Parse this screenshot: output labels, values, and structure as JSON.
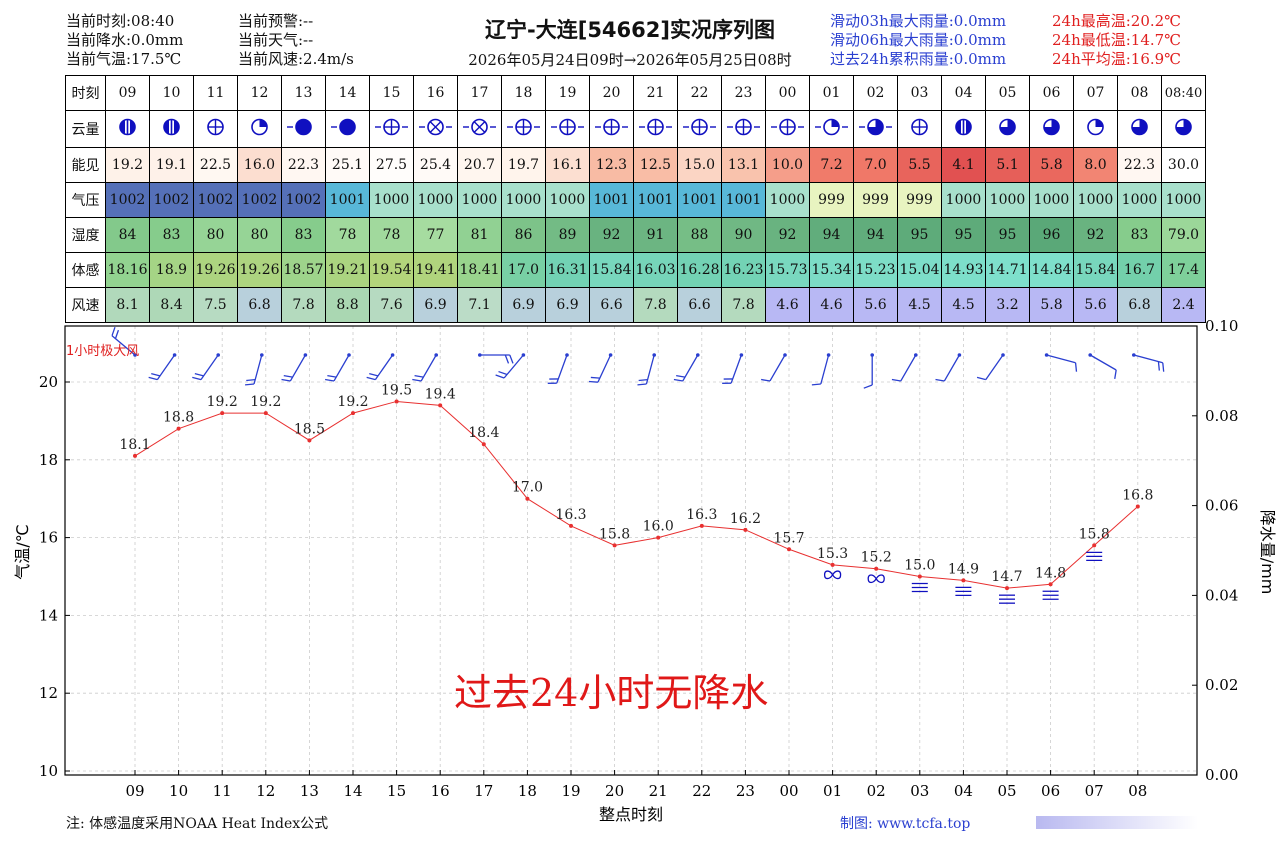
{
  "header": {
    "left": [
      "当前时刻:08:40",
      "当前降水:0.0mm",
      "当前气温:17.5℃"
    ],
    "mid": [
      "当前预警:--",
      "当前天气:--",
      "当前风速:2.4m/s"
    ],
    "title": "辽宁-大连[54662]实况序列图",
    "range": "2026年05月24日09时→2026年05月25日08时",
    "rain": [
      "滑动03h最大雨量:0.0mm",
      "滑动06h最大雨量:0.0mm",
      "过去24h累积雨量:0.0mm"
    ],
    "temp": [
      "24h最高温:20.2℃",
      "24h最低温:14.7℃",
      "24h平均温:16.9℃"
    ]
  },
  "table": {
    "labels": [
      "时刻",
      "云量",
      "能见",
      "气压",
      "湿度",
      "体感",
      "风速"
    ],
    "times": [
      "09",
      "10",
      "11",
      "12",
      "13",
      "14",
      "15",
      "16",
      "17",
      "18",
      "19",
      "20",
      "21",
      "22",
      "23",
      "00",
      "01",
      "02",
      "03",
      "04",
      "05",
      "06",
      "07",
      "08",
      "08:40"
    ],
    "visibility": [
      "19.2",
      "19.1",
      "22.5",
      "16.0",
      "22.3",
      "25.1",
      "27.5",
      "25.4",
      "20.7",
      "19.7",
      "16.1",
      "12.3",
      "12.5",
      "15.0",
      "13.1",
      "10.0",
      "7.2",
      "7.0",
      "5.5",
      "4.1",
      "5.1",
      "5.8",
      "8.0",
      "22.3",
      "30.0"
    ],
    "pressure": [
      "1002",
      "1002",
      "1002",
      "1002",
      "1002",
      "1001",
      "1000",
      "1000",
      "1000",
      "1000",
      "1000",
      "1001",
      "1001",
      "1001",
      "1001",
      "1000",
      "999",
      "999",
      "999",
      "1000",
      "1000",
      "1000",
      "1000",
      "1000",
      "1000"
    ],
    "humidity": [
      "84",
      "83",
      "80",
      "80",
      "83",
      "78",
      "78",
      "77",
      "81",
      "86",
      "89",
      "92",
      "91",
      "88",
      "90",
      "92",
      "94",
      "94",
      "95",
      "95",
      "95",
      "96",
      "92",
      "83",
      "79.0"
    ],
    "feels": [
      "18.16",
      "18.9",
      "19.26",
      "19.26",
      "18.57",
      "19.21",
      "19.54",
      "19.41",
      "18.41",
      "17.0",
      "16.31",
      "15.84",
      "16.03",
      "16.28",
      "16.23",
      "15.73",
      "15.34",
      "15.23",
      "15.04",
      "14.93",
      "14.71",
      "14.84",
      "15.84",
      "16.7",
      "17.4"
    ],
    "wind": [
      "8.1",
      "8.4",
      "7.5",
      "6.8",
      "7.8",
      "8.8",
      "7.6",
      "6.9",
      "7.1",
      "6.9",
      "6.9",
      "6.6",
      "7.8",
      "6.6",
      "7.8",
      "4.6",
      "4.6",
      "5.6",
      "4.5",
      "4.5",
      "3.2",
      "5.8",
      "5.6",
      "6.8",
      "2.4"
    ]
  },
  "colors": {
    "temp_line": "#e83030",
    "wind_barb": "#2a3fd0",
    "no_precip_text": "#e01818"
  },
  "chart_data": {
    "type": "line",
    "x": [
      "09",
      "10",
      "11",
      "12",
      "13",
      "14",
      "15",
      "16",
      "17",
      "18",
      "19",
      "20",
      "21",
      "22",
      "23",
      "00",
      "01",
      "02",
      "03",
      "04",
      "05",
      "06",
      "07",
      "08"
    ],
    "series": [
      {
        "values": [
          18.1,
          18.8,
          19.2,
          19.2,
          18.5,
          19.2,
          19.5,
          19.4,
          18.4,
          17.0,
          16.3,
          15.8,
          16.0,
          16.3,
          16.2,
          15.7,
          15.3,
          15.2,
          15.0,
          14.9,
          14.7,
          14.8,
          15.8,
          16.8
        ]
      }
    ],
    "value_labels": [
      "18.1",
      "18.8",
      "19.2",
      "19.2",
      "18.5",
      "19.2",
      "19.5",
      "19.4",
      "18.4",
      "17.0",
      "16.3",
      "15.8",
      "16.0",
      "16.3",
      "16.2",
      "15.7",
      "15.3",
      "15.2",
      "15.0",
      "14.9",
      "14.7",
      "14.8",
      "15.8",
      "16.8"
    ],
    "xlabel": "整点时刻",
    "ylabel": "气温/℃",
    "ylabel_right": "降水量/mm",
    "ylim": [
      10,
      21.4
    ],
    "yticks": [
      "10",
      "12",
      "14",
      "16",
      "18",
      "20"
    ],
    "ylim_right": [
      0,
      0.1
    ],
    "yticks_right": [
      "0.00",
      "0.02",
      "0.04",
      "0.06",
      "0.08",
      "0.10"
    ],
    "gust_label": "1小时极大风",
    "grid": true
  },
  "no_precip": "过去24小时无降水",
  "footer": {
    "note": "注: 体感温度采用NOAA Heat Index公式",
    "credit": "制图: www.tcfa.top"
  }
}
